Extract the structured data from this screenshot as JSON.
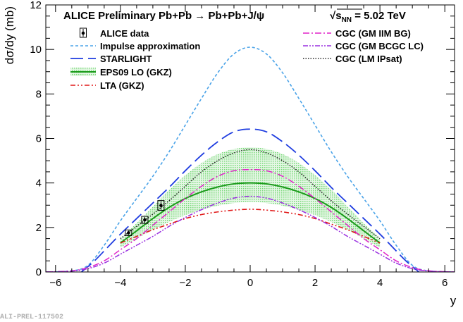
{
  "chart_data": {
    "type": "line",
    "title": "ALICE Preliminary   Pb+Pb → Pb+Pb+J/ψ",
    "energy_label": "√s",
    "energy_sub": "NN",
    "energy_value": " = 5.02 TeV",
    "xlabel": "y",
    "ylabel": "dσ/dy (mb)",
    "xlim": [
      -6.3,
      6.3
    ],
    "ylim": [
      0,
      12
    ],
    "xticks": [
      -6,
      -4,
      -2,
      0,
      2,
      4,
      6
    ],
    "yticks": [
      0,
      2,
      4,
      6,
      8,
      10,
      12
    ],
    "footer": "ALI-PREL-117502",
    "data_points": {
      "name": "ALICE data",
      "points": [
        {
          "x": -3.75,
          "y": 1.76,
          "yerr": 0.13,
          "xerr": 0.25
        },
        {
          "x": -3.25,
          "y": 2.34,
          "yerr": 0.16,
          "xerr": 0.25
        },
        {
          "x": -2.75,
          "y": 2.99,
          "yerr": 0.22,
          "xerr": 0.25
        }
      ]
    },
    "band": {
      "name": "EPS09 LO (GKZ) uncertainty",
      "color": "#6fd86f",
      "x": [
        -4.0,
        -3.5,
        -3.0,
        -2.5,
        -2.0,
        -1.5,
        -1.0,
        -0.5,
        0.0,
        0.5,
        1.0,
        1.5,
        2.0,
        2.5,
        3.0,
        3.5,
        4.0
      ],
      "lower": [
        1.1,
        1.5,
        1.9,
        2.25,
        2.55,
        2.8,
        2.98,
        3.1,
        3.15,
        3.1,
        2.98,
        2.8,
        2.55,
        2.25,
        1.9,
        1.5,
        1.1
      ],
      "upper": [
        1.5,
        2.2,
        2.95,
        3.7,
        4.35,
        4.9,
        5.3,
        5.53,
        5.6,
        5.53,
        5.3,
        4.9,
        4.35,
        3.7,
        2.95,
        2.2,
        1.5
      ]
    },
    "series": [
      {
        "name": "Impulse approximation",
        "color": "#4aa3e8",
        "dash": "4,3",
        "width": 1.6,
        "x": [
          -6.3,
          -5.5,
          -5.0,
          -4.5,
          -4.0,
          -3.5,
          -3.0,
          -2.5,
          -2.0,
          -1.5,
          -1.0,
          -0.5,
          0.0,
          0.5,
          1.0,
          1.5,
          2.0,
          2.5,
          3.0,
          3.5,
          4.0,
          4.5,
          5.0,
          5.5,
          6.3
        ],
        "y": [
          0.0,
          0.05,
          0.3,
          1.2,
          2.3,
          3.3,
          4.3,
          5.4,
          6.6,
          7.8,
          8.95,
          9.8,
          10.1,
          9.8,
          8.95,
          7.8,
          6.6,
          5.4,
          4.3,
          3.3,
          2.3,
          1.2,
          0.3,
          0.05,
          0.0
        ]
      },
      {
        "name": "STARLIGHT",
        "color": "#1f3de0",
        "dash": "18,7",
        "width": 1.8,
        "x": [
          -5.2,
          -4.8,
          -4.4,
          -4.0,
          -3.5,
          -3.0,
          -2.5,
          -2.0,
          -1.5,
          -1.0,
          -0.5,
          0.0,
          0.5,
          1.0,
          1.5,
          2.0,
          2.5,
          3.0,
          3.5,
          4.0,
          4.4,
          4.8,
          5.2
        ],
        "y": [
          0.0,
          0.5,
          1.1,
          1.7,
          2.4,
          3.1,
          3.8,
          4.55,
          5.25,
          5.85,
          6.3,
          6.42,
          6.3,
          5.85,
          5.25,
          4.55,
          3.8,
          3.1,
          2.4,
          1.7,
          1.1,
          0.5,
          0.0
        ]
      },
      {
        "name": "EPS09 LO (GKZ)",
        "color": "#1a9a1a",
        "dash": "",
        "width": 2.0,
        "x": [
          -4.0,
          -3.5,
          -3.0,
          -2.5,
          -2.0,
          -1.5,
          -1.0,
          -0.5,
          0.0,
          0.5,
          1.0,
          1.5,
          2.0,
          2.5,
          3.0,
          3.5,
          4.0
        ],
        "y": [
          1.3,
          1.85,
          2.4,
          2.9,
          3.3,
          3.6,
          3.82,
          3.96,
          4.0,
          3.96,
          3.82,
          3.6,
          3.3,
          2.9,
          2.4,
          1.85,
          1.3
        ]
      },
      {
        "name": "LTA (GKZ)",
        "color": "#e01818",
        "dash": "7,3,2,3,2,3",
        "width": 1.6,
        "x": [
          -4.0,
          -3.5,
          -3.0,
          -2.5,
          -2.0,
          -1.5,
          -1.0,
          -0.5,
          0.0,
          0.5,
          1.0,
          1.5,
          2.0,
          2.5,
          3.0,
          3.5,
          4.0
        ],
        "y": [
          1.3,
          1.6,
          1.9,
          2.15,
          2.4,
          2.58,
          2.7,
          2.78,
          2.82,
          2.78,
          2.7,
          2.58,
          2.4,
          2.15,
          1.9,
          1.6,
          1.3
        ]
      },
      {
        "name": "CGC (GM IIM BG)",
        "color": "#e020c8",
        "dash": "9,3,2,3",
        "width": 1.5,
        "x": [
          -6.3,
          -5.5,
          -5.0,
          -4.5,
          -4.0,
          -3.5,
          -3.0,
          -2.5,
          -2.0,
          -1.5,
          -1.0,
          -0.5,
          0.0,
          0.5,
          1.0,
          1.5,
          2.0,
          2.5,
          3.0,
          3.5,
          4.0,
          4.5,
          5.0,
          5.5,
          6.3
        ],
        "y": [
          0.0,
          0.05,
          0.2,
          0.5,
          1.0,
          1.5,
          2.1,
          2.7,
          3.3,
          3.85,
          4.3,
          4.55,
          4.6,
          4.55,
          4.3,
          3.85,
          3.3,
          2.7,
          2.1,
          1.5,
          1.0,
          0.5,
          0.2,
          0.05,
          0.0
        ]
      },
      {
        "name": "CGC (GM BCGC LC)",
        "color": "#9a30e0",
        "dash": "7,2,2,2,2,2",
        "width": 1.5,
        "x": [
          -6.3,
          -5.5,
          -5.0,
          -4.5,
          -4.0,
          -3.5,
          -3.0,
          -2.5,
          -2.0,
          -1.5,
          -1.0,
          -0.5,
          0.0,
          0.5,
          1.0,
          1.5,
          2.0,
          2.5,
          3.0,
          3.5,
          4.0,
          4.5,
          5.0,
          5.5,
          6.3
        ],
        "y": [
          0.0,
          0.04,
          0.15,
          0.4,
          0.8,
          1.2,
          1.6,
          2.05,
          2.45,
          2.8,
          3.1,
          3.32,
          3.4,
          3.32,
          3.1,
          2.8,
          2.45,
          2.05,
          1.6,
          1.2,
          0.8,
          0.4,
          0.15,
          0.04,
          0.0
        ]
      },
      {
        "name": "CGC (LM IPsat)",
        "color": "#222222",
        "dash": "1.5,2",
        "width": 1.5,
        "x": [
          -4.0,
          -3.5,
          -3.0,
          -2.5,
          -2.0,
          -1.5,
          -1.0,
          -0.5,
          0.0,
          0.5,
          1.0,
          1.5,
          2.0,
          2.5,
          3.0,
          3.5,
          4.0
        ],
        "y": [
          1.5,
          2.05,
          2.6,
          3.2,
          3.85,
          4.5,
          5.0,
          5.35,
          5.5,
          5.35,
          5.0,
          4.5,
          3.85,
          3.2,
          2.6,
          2.05,
          1.5
        ]
      }
    ],
    "legend_left": [
      "ALICE data",
      "Impulse approximation",
      "STARLIGHT",
      "EPS09 LO (GKZ)",
      "LTA (GKZ)"
    ],
    "legend_right": [
      "CGC (GM IIM BG)",
      "CGC (GM BCGC LC)",
      "CGC (LM IPsat)"
    ]
  }
}
